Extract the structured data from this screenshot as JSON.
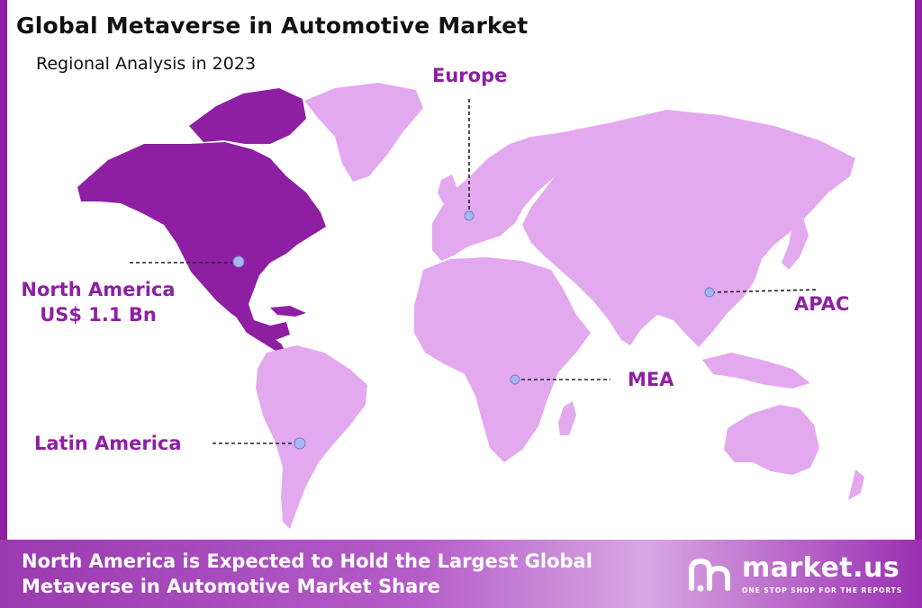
{
  "title": "Global Metaverse in Automotive Market",
  "subtitle": "Regional Analysis in 2023",
  "regions": {
    "north_america": {
      "name": "North America",
      "value": "US$ 1.1 Bn",
      "color": "#8e1fa3"
    },
    "europe": {
      "name": "Europe",
      "color": "#e3a9ef"
    },
    "apac": {
      "name": "APAC",
      "color": "#e3a9ef"
    },
    "mea": {
      "name": "MEA",
      "color": "#e3a9ef"
    },
    "latin_america": {
      "name": "Latin America",
      "color": "#e3a9ef"
    }
  },
  "footer": {
    "line1": "North America is Expected to Hold the Largest Global",
    "line2": "Metaverse in Automotive Market Share"
  },
  "brand": {
    "name": "market.us",
    "tagline": "ONE STOP SHOP FOR THE REPORTS",
    "logo_icon": "market-us-logo-icon"
  },
  "colors": {
    "accent": "#8e1fa3",
    "land": "#e3a9ef",
    "marker": "#aab6ee"
  }
}
